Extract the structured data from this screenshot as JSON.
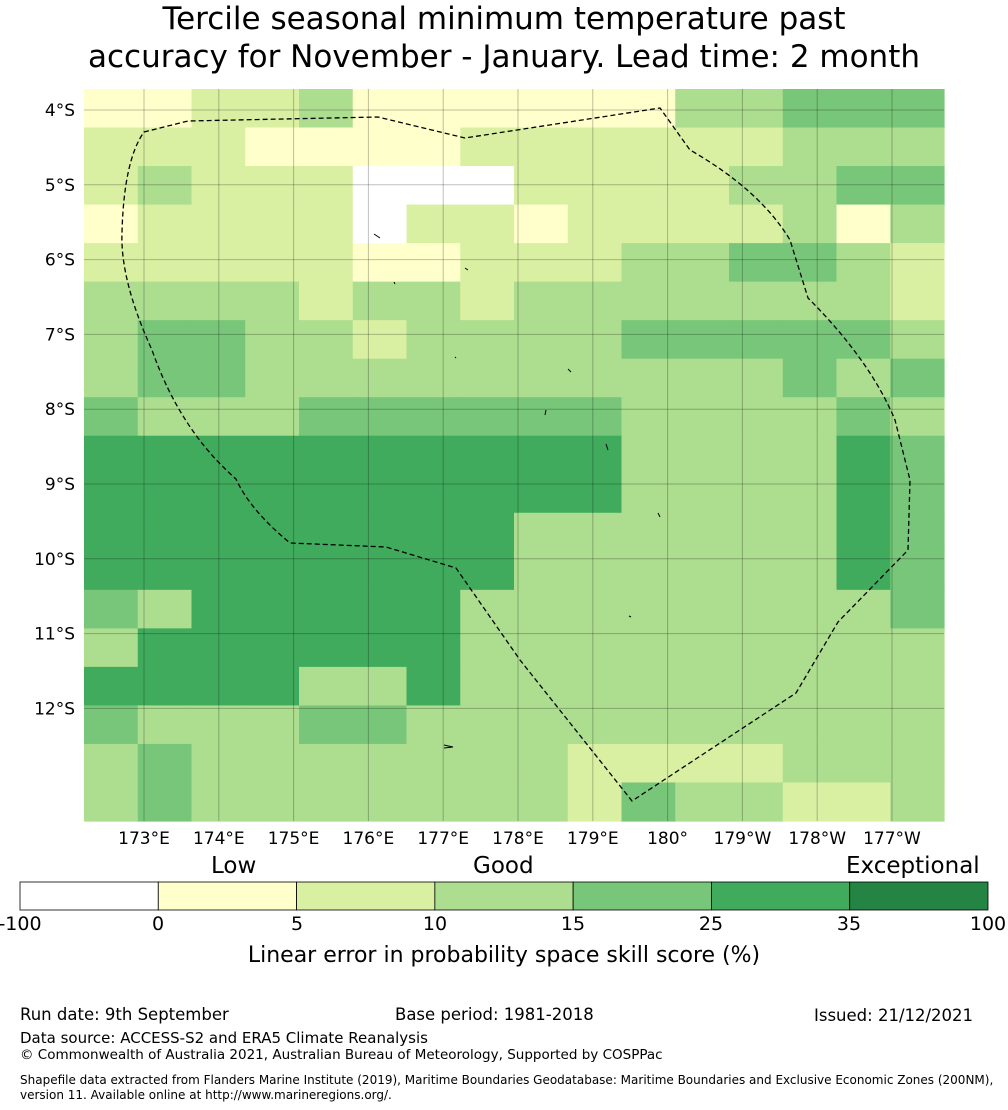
{
  "title_line1": "Tercile seasonal minimum temperature past",
  "title_line2": "accuracy for November - January. Lead time: 2 month",
  "map": {
    "lat_labels": [
      "4°S",
      "5°S",
      "6°S",
      "7°S",
      "8°S",
      "9°S",
      "10°S",
      "11°S",
      "12°S"
    ],
    "lon_labels": [
      "173°E",
      "174°E",
      "175°E",
      "176°E",
      "177°E",
      "178°E",
      "179°E",
      "180°",
      "179°W",
      "178°W",
      "177°W"
    ],
    "grid_rows": [
      "1122311111133444",
      "2221111222222333",
      "2322200022223344",
      "1222202212222313",
      "2222211222334432",
      "3333233233333332",
      "3443323333444443",
      "3443333333333434",
      "4333444444333343",
      "5555555555333354",
      "5555555555333354",
      "5555555533333354",
      "5555555533333354",
      "4355555333333334",
      "3555555333333333",
      "5555335333333333",
      "4333443333333333",
      "3433333332222333",
      "3433333332433223"
    ],
    "colors": [
      "#ffffff",
      "#ffffcc",
      "#d9f0a3",
      "#addd8e",
      "#78c679",
      "#41ab5d",
      "#238443"
    ]
  },
  "colorbar": {
    "category_labels": [
      "Low",
      "Good",
      "Exceptional"
    ],
    "ticks": [
      "-100",
      "0",
      "5",
      "10",
      "15",
      "25",
      "35",
      "100"
    ],
    "label": "Linear error in probability space skill score (%)"
  },
  "footer": {
    "run_date": "Run date: 9th September",
    "base_period": "Base period: 1981-2018",
    "issued": "Issued: 21/12/2021",
    "data_source": "Data source: ACCESS-S2 and ERA5 Climate Reanalysis",
    "copyright": "© Commonwealth of Australia 2021, Australian Bureau of Meteorology, Supported by COSPPac",
    "shapefile_line1": "Shapefile data extracted from Flanders Marine Institute (2019), Maritime Boundaries Geodatabase: Maritime Boundaries and Exclusive Economic Zones (200NM),",
    "shapefile_line2": "version 11. Available online at http://www.marineregions.org/."
  }
}
